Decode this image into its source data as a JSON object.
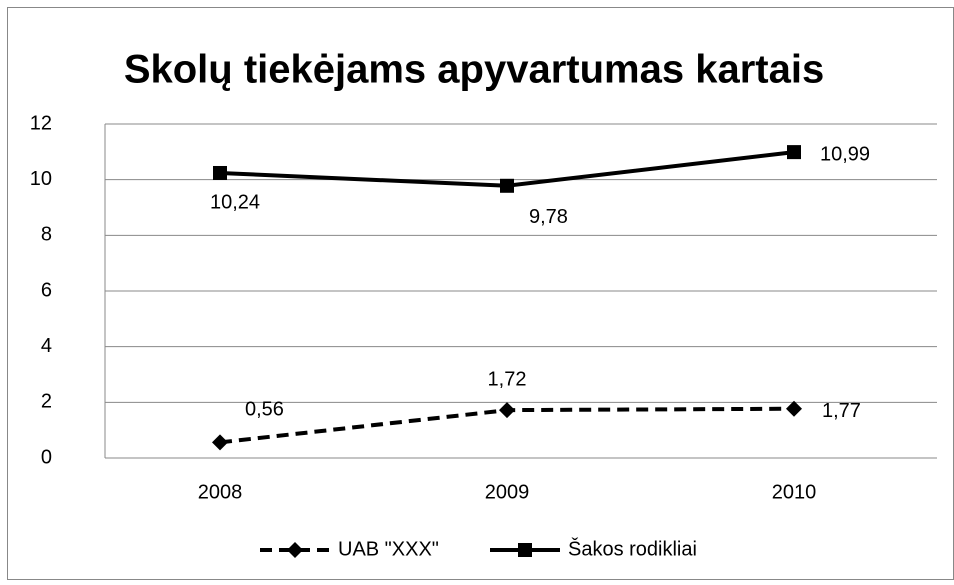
{
  "chart_data": {
    "type": "line",
    "title": "Skolų tiekėjams apyvartumas kartais",
    "categories": [
      "2008",
      "2009",
      "2010"
    ],
    "series": [
      {
        "name": "UAB \"XXX\"",
        "color": "#000000",
        "dash": true,
        "marker": "diamond",
        "values": [
          0.56,
          1.72,
          1.77
        ],
        "value_labels": [
          "0,56",
          "1,72",
          "1,77"
        ]
      },
      {
        "name": "Šakos rodikliai",
        "color": "#000000",
        "dash": false,
        "marker": "square",
        "values": [
          10.24,
          9.78,
          10.99
        ],
        "value_labels": [
          "10,24",
          "9,78",
          "10,99"
        ]
      }
    ],
    "ylim": [
      0,
      12
    ],
    "yticks": [
      0,
      2,
      4,
      6,
      8,
      10,
      12
    ],
    "grid": true,
    "legend": "bottom"
  }
}
